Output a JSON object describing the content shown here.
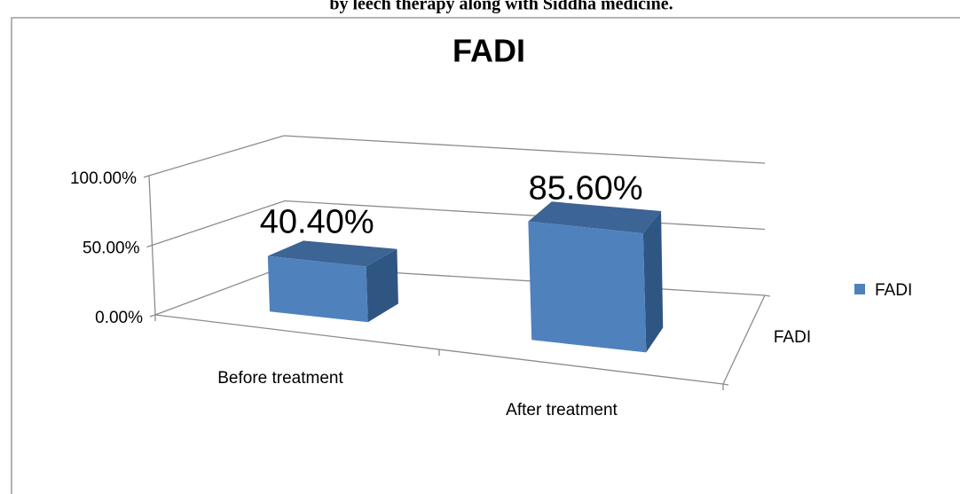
{
  "caption": "by leech therapy along with Siddha medicine.",
  "chart_data": {
    "type": "bar3d",
    "title": "FADI",
    "categories": [
      "Before treatment",
      "After treatment"
    ],
    "series": [
      {
        "name": "FADI",
        "color": "#4f81bd",
        "values": [
          40.4,
          85.6
        ],
        "value_labels": [
          "40.40%",
          "85.60%"
        ]
      }
    ],
    "ylim": [
      0,
      100
    ],
    "yticks": [
      {
        "value": 0,
        "label": "0.00%"
      },
      {
        "value": 50,
        "label": "50.00%"
      },
      {
        "value": 100,
        "label": "100.00%"
      }
    ],
    "grid": true,
    "legend": "right"
  }
}
